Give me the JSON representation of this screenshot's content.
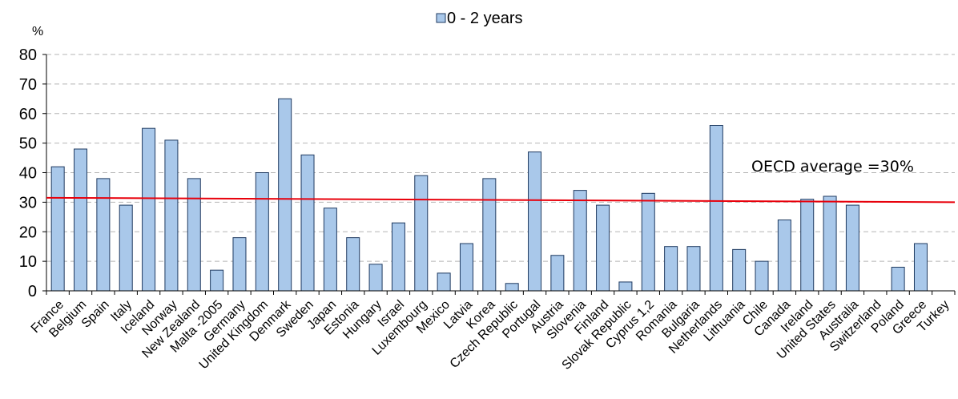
{
  "chart_data": {
    "type": "bar",
    "unit_label": "%",
    "legend": {
      "position": "top-center"
    },
    "ylim": [
      0,
      80
    ],
    "yticks": [
      0,
      10,
      20,
      30,
      40,
      50,
      60,
      70,
      80
    ],
    "grid": true,
    "categories": [
      "France",
      "Belgium",
      "Spain",
      "Italy",
      "Iceland",
      "Norway",
      "New Zealand",
      "Malta -2005",
      "Germany",
      "United Kingdom",
      "Denmark",
      "Sweden",
      "Japan",
      "Estonia",
      "Hungary",
      "Israel",
      "Luxembourg",
      "Mexico",
      "Latvia",
      "Korea",
      "Czech Republic",
      "Portugal",
      "Austria",
      "Slovenia",
      "Finland",
      "Slovak Republic",
      "Cyprus 1,2",
      "Romania",
      "Bulgaria",
      "Netherlands",
      "Lithuania",
      "Chile",
      "Canada",
      "Ireland",
      "United States",
      "Australia",
      "Switzerland",
      "Poland",
      "Greece",
      "Turkey"
    ],
    "series": [
      {
        "name": "0 - 2 years",
        "color": "#a9c8ea",
        "values": [
          42,
          48,
          38,
          29,
          55,
          51,
          38,
          7,
          18,
          40,
          65,
          46,
          28,
          18,
          9,
          23,
          39,
          6,
          16,
          38,
          2.5,
          47,
          12,
          34,
          29,
          3,
          33,
          15,
          15,
          56,
          14,
          10,
          24,
          31,
          32,
          29,
          null,
          8,
          16,
          null
        ]
      }
    ],
    "reference_line": {
      "label": "OECD average =30%",
      "start_value": 31.5,
      "end_value": 30,
      "color": "#e8000b"
    }
  }
}
